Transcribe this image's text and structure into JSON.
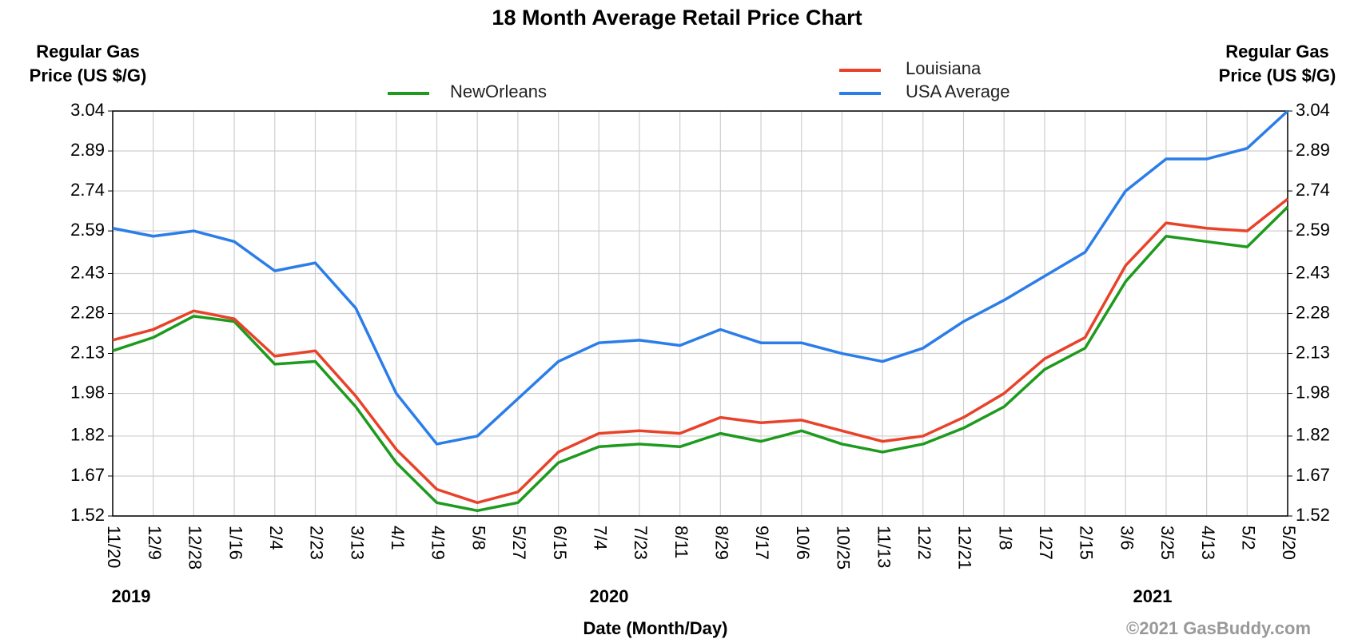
{
  "chart_data": {
    "type": "line",
    "title": "18 Month Average Retail Price Chart",
    "ylabel": [
      "Regular Gas",
      "Price (US $/G)"
    ],
    "y2label": [
      "Regular Gas",
      "Price (US $/G)"
    ],
    "xlabel": "Date (Month/Day)",
    "years": [
      "2019",
      "2020",
      "2021"
    ],
    "credit": "©2021 GasBuddy.com",
    "x": [
      "11/20",
      "12/9",
      "12/28",
      "1/16",
      "2/4",
      "2/23",
      "3/13",
      "4/1",
      "4/19",
      "5/8",
      "5/27",
      "6/15",
      "7/4",
      "7/23",
      "8/11",
      "8/29",
      "9/17",
      "10/6",
      "10/25",
      "11/13",
      "12/2",
      "12/21",
      "1/8",
      "1/27",
      "2/15",
      "3/6",
      "3/25",
      "4/13",
      "5/2",
      "5/20"
    ],
    "series": [
      {
        "name": "NewOrleans",
        "color": "#1e9a1e",
        "values": [
          2.14,
          2.19,
          2.27,
          2.25,
          2.09,
          2.1,
          1.93,
          1.72,
          1.57,
          1.54,
          1.57,
          1.72,
          1.78,
          1.79,
          1.78,
          1.83,
          1.8,
          1.84,
          1.79,
          1.76,
          1.79,
          1.85,
          1.93,
          2.07,
          2.15,
          2.4,
          2.57,
          2.55,
          2.53,
          2.68
        ]
      },
      {
        "name": "Louisiana",
        "color": "#e8432a",
        "values": [
          2.18,
          2.22,
          2.29,
          2.26,
          2.12,
          2.14,
          1.97,
          1.77,
          1.62,
          1.57,
          1.61,
          1.76,
          1.83,
          1.84,
          1.83,
          1.89,
          1.87,
          1.88,
          1.84,
          1.8,
          1.82,
          1.89,
          1.98,
          2.11,
          2.19,
          2.46,
          2.62,
          2.6,
          2.59,
          2.71
        ]
      },
      {
        "name": "USA Average",
        "color": "#2b7de9",
        "values": [
          2.6,
          2.57,
          2.59,
          2.55,
          2.44,
          2.47,
          2.3,
          1.98,
          1.79,
          1.82,
          1.96,
          2.1,
          2.17,
          2.18,
          2.16,
          2.22,
          2.17,
          2.17,
          2.13,
          2.1,
          2.15,
          2.25,
          2.33,
          2.42,
          2.51,
          2.74,
          2.86,
          2.86,
          2.9,
          3.04
        ]
      }
    ],
    "ylim": [
      1.52,
      3.04
    ],
    "yticks": [
      1.52,
      1.67,
      1.82,
      1.98,
      2.13,
      2.28,
      2.43,
      2.59,
      2.74,
      2.89,
      3.04
    ],
    "y2lim": [
      1.52,
      3.04
    ],
    "y2ticks": [
      1.52,
      1.67,
      1.82,
      1.98,
      2.13,
      2.28,
      2.43,
      2.59,
      2.74,
      2.89,
      3.04
    ],
    "grid": true
  }
}
